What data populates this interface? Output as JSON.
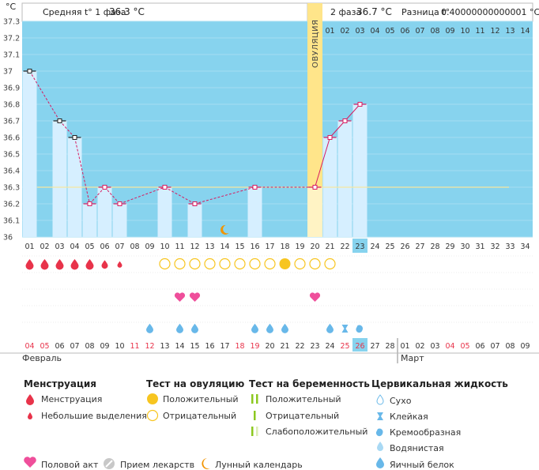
{
  "header": {
    "unit": "°C",
    "phase1_label": "Средняя t° 1 фаза",
    "phase1_value": "36.3 °C",
    "phase2_label": "2 фаза",
    "phase2_value": "36.7 °C",
    "diff_label": "Разница t°",
    "diff_value": "0.40000000000001 °C",
    "ovulation_label": "ОВУЛЯЦИЯ"
  },
  "top_days": [
    "01",
    "02",
    "03",
    "04",
    "05",
    "06",
    "07",
    "08",
    "09",
    "10",
    "11",
    "12",
    "13",
    "14"
  ],
  "chart_data": {
    "type": "bar",
    "ylim": [
      36.0,
      37.3
    ],
    "yticks": [
      "36",
      "36.1",
      "36.2",
      "36.3",
      "36.4",
      "36.5",
      "36.6",
      "36.7",
      "36.8",
      "36.9",
      "37",
      "37.1",
      "37.2",
      "37.3"
    ],
    "cycle_days": [
      "01",
      "02",
      "03",
      "04",
      "05",
      "06",
      "07",
      "08",
      "09",
      "10",
      "11",
      "12",
      "13",
      "14",
      "15",
      "16",
      "17",
      "18",
      "19",
      "20",
      "21",
      "22",
      "23",
      "24",
      "25",
      "26",
      "27",
      "28",
      "29",
      "30",
      "31",
      "32",
      "33",
      "34"
    ],
    "temperatures": [
      37.0,
      null,
      36.7,
      36.6,
      36.2,
      36.3,
      36.2,
      null,
      null,
      36.3,
      null,
      36.2,
      null,
      null,
      null,
      36.3,
      null,
      null,
      null,
      36.3,
      36.6,
      36.7,
      36.8,
      null,
      null,
      null,
      null,
      null,
      null,
      null,
      null,
      null,
      null,
      null
    ],
    "temperatures_gapped_marker": [
      true,
      false,
      true,
      true,
      false,
      false,
      false,
      false,
      false,
      false,
      false,
      false,
      false,
      false,
      false,
      false,
      false,
      false,
      false,
      false,
      false,
      false,
      false,
      false,
      false,
      false,
      false,
      false,
      false,
      false,
      false,
      false,
      false,
      false
    ],
    "coverline": 36.3,
    "ovulation_day": "20",
    "today_day": "23",
    "moon_day": "14"
  },
  "rows": {
    "menstruation": [
      3,
      3,
      3,
      3,
      3,
      2,
      1,
      0,
      0,
      0,
      0,
      0,
      0,
      0,
      0,
      0,
      0,
      0,
      0,
      0,
      0,
      0,
      0,
      0,
      0,
      0,
      0,
      0,
      0,
      0,
      0,
      0,
      0,
      0
    ],
    "ovulation_test": [
      0,
      0,
      0,
      0,
      0,
      0,
      0,
      0,
      0,
      1,
      1,
      1,
      1,
      1,
      1,
      1,
      1,
      2,
      1,
      1,
      1,
      0,
      0,
      0,
      0,
      0,
      0,
      0,
      0,
      0,
      0,
      0,
      0,
      0
    ],
    "intercourse": [
      0,
      0,
      0,
      0,
      0,
      0,
      0,
      0,
      0,
      0,
      1,
      1,
      0,
      0,
      0,
      0,
      0,
      0,
      0,
      1,
      0,
      0,
      0,
      0,
      0,
      0,
      0,
      0,
      0,
      0,
      0,
      0,
      0,
      0
    ],
    "fluid": [
      "",
      "",
      "",
      "",
      "",
      "",
      "",
      "",
      "e",
      "",
      "e",
      "e",
      "",
      "",
      "",
      "e",
      "e",
      "e",
      "",
      "",
      "e",
      "t",
      "c",
      "",
      "",
      "",
      "",
      "",
      "",
      "",
      "",
      "",
      "",
      ""
    ]
  },
  "dates": [
    {
      "d": "04",
      "red": true
    },
    {
      "d": "05",
      "red": true
    },
    {
      "d": "06",
      "red": false
    },
    {
      "d": "07",
      "red": false
    },
    {
      "d": "08",
      "red": false
    },
    {
      "d": "09",
      "red": false
    },
    {
      "d": "10",
      "red": false
    },
    {
      "d": "11",
      "red": true
    },
    {
      "d": "12",
      "red": true
    },
    {
      "d": "13",
      "red": false
    },
    {
      "d": "14",
      "red": false
    },
    {
      "d": "15",
      "red": false
    },
    {
      "d": "16",
      "red": false
    },
    {
      "d": "17",
      "red": false
    },
    {
      "d": "18",
      "red": true
    },
    {
      "d": "19",
      "red": true
    },
    {
      "d": "20",
      "red": false
    },
    {
      "d": "21",
      "red": false
    },
    {
      "d": "22",
      "red": false
    },
    {
      "d": "23",
      "red": false
    },
    {
      "d": "24",
      "red": false
    },
    {
      "d": "25",
      "red": true
    },
    {
      "d": "26",
      "red": true
    },
    {
      "d": "27",
      "red": false
    },
    {
      "d": "28",
      "red": false
    },
    {
      "d": "01",
      "red": false
    },
    {
      "d": "02",
      "red": false
    },
    {
      "d": "03",
      "red": false
    },
    {
      "d": "04",
      "red": true
    },
    {
      "d": "05",
      "red": true
    },
    {
      "d": "06",
      "red": false
    },
    {
      "d": "07",
      "red": false
    },
    {
      "d": "08",
      "red": false
    },
    {
      "d": "09",
      "red": false
    }
  ],
  "months": {
    "first": "Февраль",
    "second": "Март"
  },
  "legend": {
    "menstruation": {
      "title": "Менструация",
      "items": [
        "Менструация",
        "Небольшие выделения"
      ]
    },
    "ovulation": {
      "title": "Тест на овуляцию",
      "items": [
        "Положительный",
        "Отрицательный"
      ]
    },
    "pregnancy": {
      "title": "Тест на беременность",
      "items": [
        "Положительный",
        "Отрицательный",
        "Слабоположительный"
      ]
    },
    "fluid": {
      "title": "Цервикальная жидкость",
      "items": [
        "Сухо",
        "Клейкая",
        "Кремообразная",
        "Водянистая",
        "Яичный белок"
      ]
    },
    "bottom": [
      "Половой акт",
      "Прием лекарств",
      "Лунный календарь"
    ]
  },
  "colors": {
    "plot_bg": "#87d3ee",
    "bar": "#d6efff",
    "line": "#d81b60",
    "ovulation": "#ffe58a",
    "red": "#e8334a",
    "pink": "#ef4f9b",
    "blue": "#68b8e9",
    "yellow": "#f7c520",
    "green": "#8cc820",
    "orange": "#f29400"
  }
}
